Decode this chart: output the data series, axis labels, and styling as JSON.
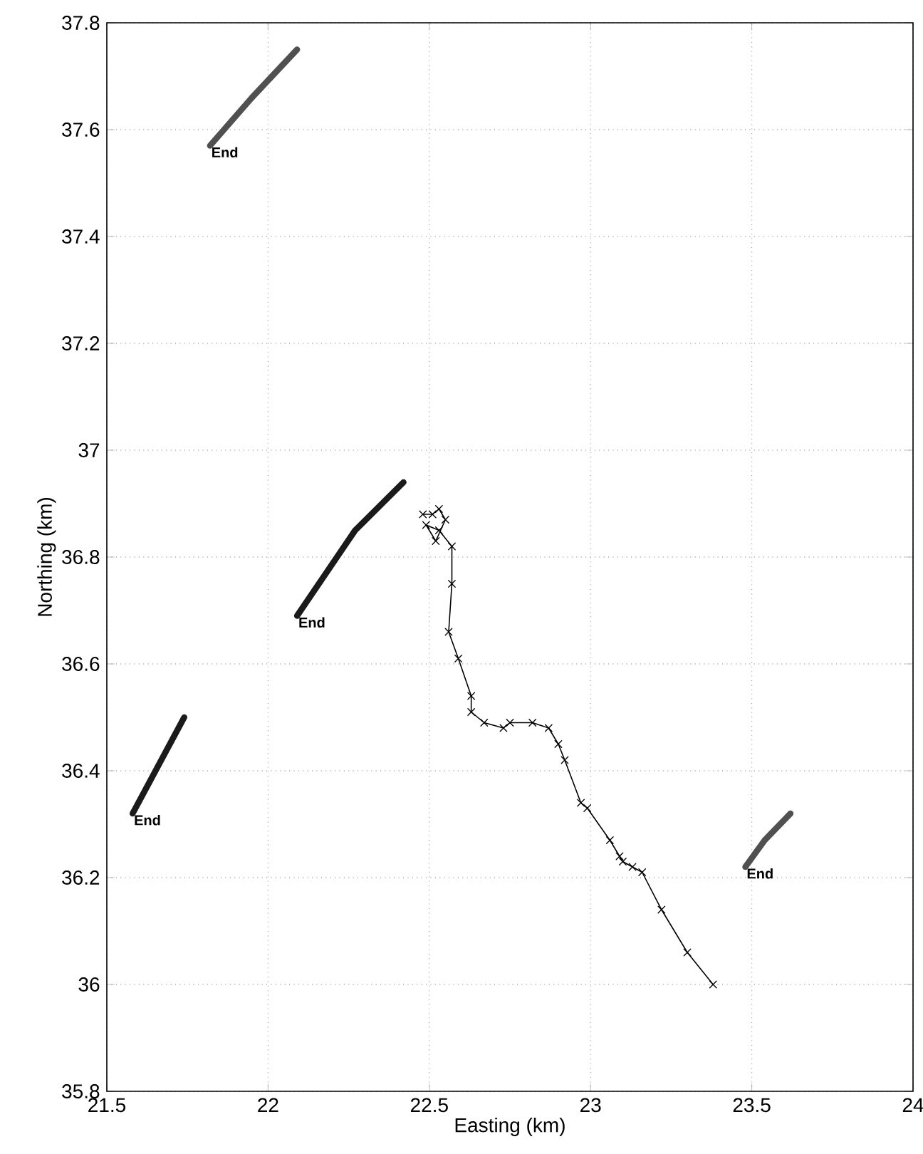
{
  "chart_data": {
    "type": "line",
    "xlabel": "Easting (km)",
    "ylabel": "Northing (km)",
    "xlim": [
      21.5,
      24
    ],
    "ylim": [
      35.8,
      37.8
    ],
    "xticks": [
      21.5,
      22,
      22.5,
      23,
      23.5,
      24
    ],
    "yticks": [
      35.8,
      36,
      36.2,
      36.4,
      36.6,
      36.8,
      37,
      37.2,
      37.4,
      37.6,
      37.8
    ],
    "grid": true,
    "series": [
      {
        "color": "#505050",
        "marker": "none",
        "x": [
          21.82,
          21.95,
          22.09
        ],
        "values": [
          37.57,
          37.66,
          37.75
        ]
      },
      {
        "color": "#1a1a1a",
        "marker": "none",
        "x": [
          22.09,
          22.27,
          22.42
        ],
        "values": [
          36.69,
          36.85,
          36.94
        ]
      },
      {
        "color": "#1a1a1a",
        "marker": "none",
        "x": [
          21.58,
          21.66,
          21.74
        ],
        "values": [
          36.32,
          36.41,
          36.5
        ]
      },
      {
        "color": "#505050",
        "marker": "none",
        "x": [
          23.48,
          23.54,
          23.62
        ],
        "values": [
          36.22,
          36.27,
          36.32
        ]
      },
      {
        "color": "#000000",
        "marker": "cross",
        "x": [
          22.48,
          22.51,
          22.53,
          22.55,
          22.52,
          22.49,
          22.53,
          22.57,
          22.57,
          22.56,
          22.59,
          22.63,
          22.63,
          22.67,
          22.73,
          22.75,
          22.82,
          22.87,
          22.9,
          22.92,
          22.97,
          22.99,
          23.06,
          23.09,
          23.1,
          23.13,
          23.16,
          23.22,
          23.3,
          23.38
        ],
        "values": [
          36.88,
          36.88,
          36.89,
          36.87,
          36.83,
          36.86,
          36.85,
          36.82,
          36.75,
          36.66,
          36.61,
          36.54,
          36.51,
          36.49,
          36.48,
          36.49,
          36.49,
          36.48,
          36.45,
          36.42,
          36.34,
          36.33,
          36.27,
          36.24,
          36.23,
          36.22,
          36.21,
          36.14,
          36.06,
          36.0
        ]
      }
    ],
    "annotations": [
      {
        "text": "End",
        "x": 21.82,
        "y": 37.57
      },
      {
        "text": "End",
        "x": 22.09,
        "y": 36.69
      },
      {
        "text": "End",
        "x": 21.58,
        "y": 36.32
      },
      {
        "text": "End",
        "x": 23.48,
        "y": 36.22
      }
    ]
  }
}
